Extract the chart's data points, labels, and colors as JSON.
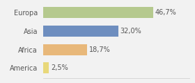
{
  "categories": [
    "Europa",
    "Asia",
    "Africa",
    "America"
  ],
  "values": [
    46.7,
    32.0,
    18.7,
    2.5
  ],
  "labels": [
    "46,7%",
    "32,0%",
    "18,7%",
    "2,5%"
  ],
  "bar_colors": [
    "#b5c98e",
    "#6e8ebf",
    "#e8b87a",
    "#e8d87a"
  ],
  "background_color": "#f2f2f2",
  "xlim": [
    0,
    62
  ],
  "label_fontsize": 7.0,
  "tick_fontsize": 7.0,
  "bar_height": 0.6
}
